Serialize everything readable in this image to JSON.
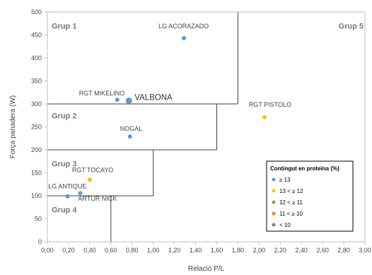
{
  "chart_data": {
    "type": "scatter",
    "title": "",
    "xlabel": "Relació P/L",
    "ylabel": "Força panadera (W)",
    "xlim": [
      0,
      3.0
    ],
    "ylim": [
      0,
      500
    ],
    "xticks": [
      "0,00",
      "0,20",
      "0,40",
      "0,60",
      "0,80",
      "1,00",
      "1,20",
      "1,40",
      "1,60",
      "1,80",
      "2,00",
      "2,20",
      "2,40",
      "2,60",
      "2,80",
      "3,00"
    ],
    "yticks": [
      "0",
      "50",
      "100",
      "150",
      "200",
      "250",
      "300",
      "350",
      "400",
      "450",
      "500"
    ],
    "grid": false,
    "legend": {
      "title": "Contingut en proteïna (%)",
      "placement": "bottom-right",
      "entries": [
        {
          "label": "≥ 13",
          "color": "#5b9bd5"
        },
        {
          "label": "13 < ≥ 12",
          "color": "#ffc000"
        },
        {
          "label": "12 < ≥ 11",
          "color": "#70ad47"
        },
        {
          "label": "11 < ≥ 10",
          "color": "#ed7d31"
        },
        {
          "label": "< 10",
          "color": "#7f7f7f"
        }
      ]
    },
    "groups": [
      {
        "label": "Grup 1",
        "x": 0.02,
        "y": 470
      },
      {
        "label": "Grup 2",
        "x": 0.02,
        "y": 275
      },
      {
        "label": "Grup 3",
        "x": 0.02,
        "y": 170
      },
      {
        "label": "Grup 4",
        "x": 0.02,
        "y": 70
      },
      {
        "label": "Grup 5",
        "x": 2.73,
        "y": 470
      }
    ],
    "boundaries": [
      {
        "x1": 0.6,
        "y1": 0,
        "x2": 0.6,
        "y2": 100
      },
      {
        "x1": 0,
        "y1": 100,
        "x2": 1.0,
        "y2": 100
      },
      {
        "x1": 1.0,
        "y1": 100,
        "x2": 1.0,
        "y2": 200
      },
      {
        "x1": 0,
        "y1": 200,
        "x2": 1.6,
        "y2": 200
      },
      {
        "x1": 1.6,
        "y1": 200,
        "x2": 1.6,
        "y2": 300
      },
      {
        "x1": 0,
        "y1": 300,
        "x2": 1.8,
        "y2": 300
      },
      {
        "x1": 1.8,
        "y1": 300,
        "x2": 1.8,
        "y2": 500
      }
    ],
    "points": [
      {
        "name": "LG ACORAZADO",
        "x": 1.29,
        "y": 443,
        "color": "#5b9bd5",
        "highlight": false
      },
      {
        "name": "RGT MIKELINO",
        "x": 0.66,
        "y": 309,
        "color": "#5b9bd5",
        "highlight": false
      },
      {
        "name": "VALBONA",
        "x": 0.77,
        "y": 307,
        "color": "#5b9bd5",
        "highlight": true
      },
      {
        "name": "RGT PISTOLO",
        "x": 2.05,
        "y": 271,
        "color": "#ffc000",
        "highlight": false
      },
      {
        "name": "NOGAL",
        "x": 0.78,
        "y": 229,
        "color": "#5b9bd5",
        "highlight": false
      },
      {
        "name": "RGT TOCAYO",
        "x": 0.4,
        "y": 135,
        "color": "#ffc000",
        "highlight": false
      },
      {
        "name": "LG ANTIQUE",
        "x": 0.19,
        "y": 99,
        "color": "#5b9bd5",
        "highlight": false
      },
      {
        "name": "ARTUR NICK",
        "x": 0.31,
        "y": 106,
        "color": "#5b9bd5",
        "highlight": false
      }
    ]
  }
}
